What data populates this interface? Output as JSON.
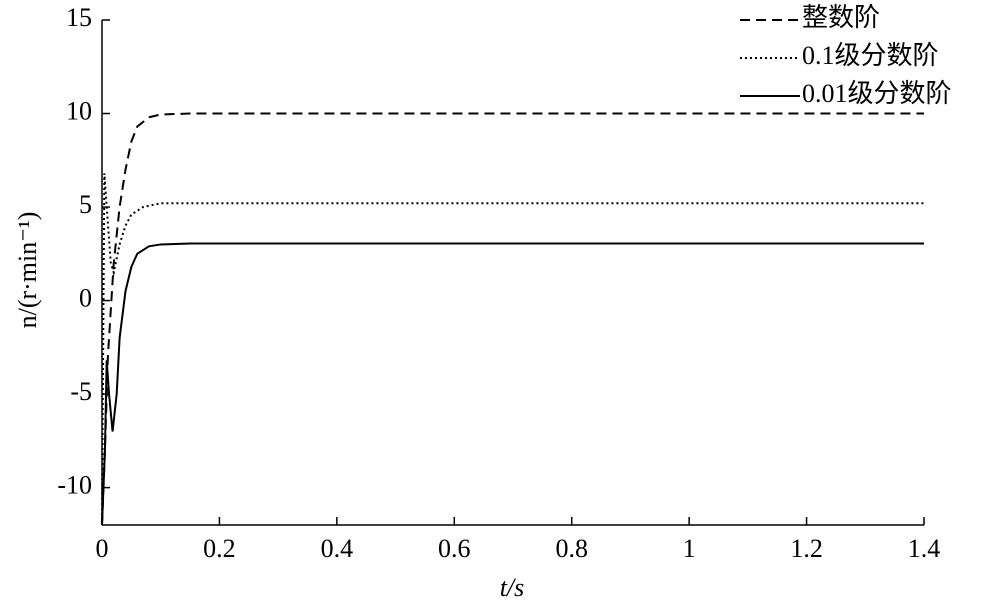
{
  "chart_data": {
    "type": "line",
    "xlabel": "t/s",
    "ylabel": "n/(r·min⁻¹)",
    "xlim": [
      0,
      1.4
    ],
    "xticks": [
      0,
      0.2,
      0.4,
      0.6,
      0.8,
      1,
      1.2,
      1.4
    ],
    "ylim": [
      -12,
      15
    ],
    "yticks": [
      -10,
      -5,
      0,
      5,
      10,
      15
    ],
    "legend": "upper right",
    "series": [
      {
        "name": "整数阶",
        "color": "#000000",
        "line_style": "dashed",
        "x": [
          0,
          0.005,
          0.01,
          0.02,
          0.03,
          0.04,
          0.05,
          0.06,
          0.08,
          0.1,
          0.15,
          1.4
        ],
        "values": [
          -12,
          -8,
          -3,
          2,
          5,
          7,
          8.5,
          9.3,
          9.8,
          9.95,
          10,
          10
        ]
      },
      {
        "name": "0.1级分数阶",
        "color": "#000000",
        "line_style": "dotted",
        "x": [
          0,
          0.004,
          0.008,
          0.015,
          0.02,
          0.03,
          0.04,
          0.05,
          0.07,
          0.1,
          1.4
        ],
        "values": [
          -12,
          6.8,
          5,
          2,
          1.5,
          3,
          4,
          4.6,
          5,
          5.2,
          5.2
        ]
      },
      {
        "name": "0.01级分数阶",
        "color": "#000000",
        "line_style": "solid",
        "x": [
          0,
          0.005,
          0.008,
          0.012,
          0.018,
          0.025,
          0.03,
          0.04,
          0.05,
          0.06,
          0.08,
          0.1,
          0.15,
          1.4
        ],
        "values": [
          -12,
          -8,
          -3.2,
          -5,
          -7,
          -5,
          -2,
          0.5,
          1.8,
          2.5,
          2.9,
          3,
          3.05,
          3.05
        ]
      }
    ]
  }
}
